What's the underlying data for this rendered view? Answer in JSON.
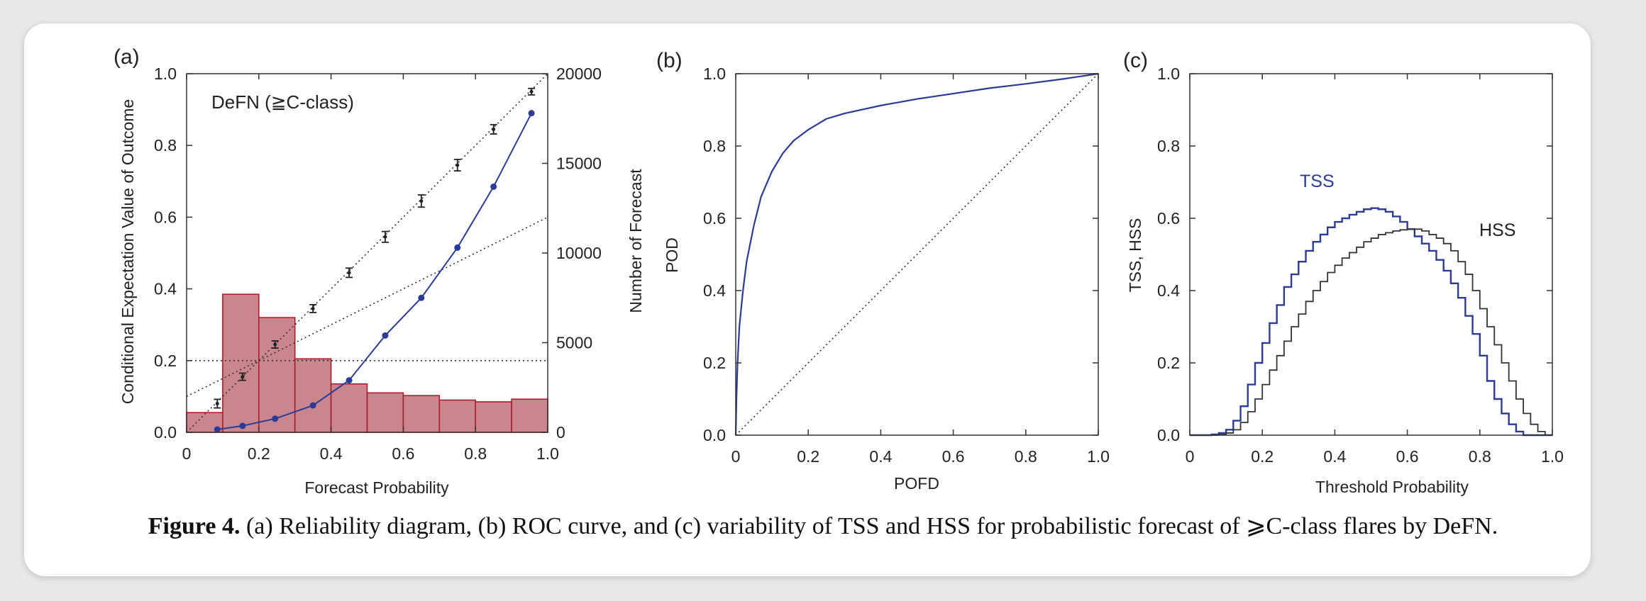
{
  "caption": {
    "label": "Figure 4.",
    "text": "(a) Reliability diagram, (b) ROC curve, and (c) variability of TSS and HSS for probabilistic forecast of ⩾C-class flares by DeFN."
  },
  "colors": {
    "histogram_fill": "#c9868f",
    "histogram_edge": "#b01c2a",
    "curve_blue": "#2b3b96",
    "errorbar_black": "#222222",
    "reference_line": "#333333"
  },
  "chart_data": [
    {
      "panel_label": "(a)",
      "type": "bar",
      "annotation": "DeFN  (≧C-class)",
      "xlabel": "Forecast Probability",
      "ylabel": "Conditional Expectation Value of Outcome",
      "y2label": "Number of Forecast",
      "xlim": [
        0,
        1.0
      ],
      "ylim": [
        0,
        1.0
      ],
      "y2lim": [
        0,
        20000
      ],
      "x_ticks": [
        "0",
        "0.2",
        "0.4",
        "0.6",
        "0.8",
        "1.0"
      ],
      "y_ticks": [
        "0.0",
        "0.2",
        "0.4",
        "0.6",
        "0.8",
        "1.0"
      ],
      "y2_ticks": [
        "0",
        "5000",
        "10000",
        "15000",
        "20000"
      ],
      "histogram": {
        "bin_edges": [
          0,
          0.1,
          0.2,
          0.3,
          0.4,
          0.5,
          0.6,
          0.7,
          0.8,
          0.9,
          1.0
        ],
        "counts": [
          1100,
          7700,
          6400,
          4100,
          2700,
          2200,
          2050,
          1800,
          1700,
          1850
        ]
      },
      "observed": {
        "x": [
          0.085,
          0.155,
          0.245,
          0.35,
          0.45,
          0.55,
          0.65,
          0.75,
          0.85,
          0.955
        ],
        "y": [
          0.08,
          0.155,
          0.245,
          0.345,
          0.445,
          0.545,
          0.645,
          0.745,
          0.845,
          0.95
        ],
        "err": [
          0.012,
          0.01,
          0.01,
          0.011,
          0.013,
          0.015,
          0.017,
          0.016,
          0.013,
          0.009
        ]
      },
      "blue_series": {
        "x": [
          0.085,
          0.155,
          0.245,
          0.35,
          0.45,
          0.55,
          0.65,
          0.75,
          0.85,
          0.955
        ],
        "y": [
          0.008,
          0.018,
          0.038,
          0.075,
          0.145,
          0.27,
          0.375,
          0.515,
          0.685,
          0.89
        ]
      },
      "reference_lines": {
        "perfect": [
          [
            0,
            0
          ],
          [
            1,
            1
          ]
        ],
        "no_skill": [
          [
            0,
            0.1
          ],
          [
            1,
            0.6
          ]
        ],
        "climatology": [
          [
            0,
            0.2
          ],
          [
            1,
            0.2
          ]
        ]
      }
    },
    {
      "panel_label": "(b)",
      "type": "line",
      "xlabel": "POFD",
      "ylabel": "POD",
      "xlim": [
        0,
        1.0
      ],
      "ylim": [
        0,
        1.0
      ],
      "x_ticks": [
        "0",
        "0.2",
        "0.4",
        "0.6",
        "0.8",
        "1.0"
      ],
      "y_ticks": [
        "0.0",
        "0.2",
        "0.4",
        "0.6",
        "0.8",
        "1.0"
      ],
      "roc": {
        "x": [
          0,
          0.002,
          0.005,
          0.01,
          0.02,
          0.03,
          0.05,
          0.07,
          0.1,
          0.13,
          0.16,
          0.2,
          0.25,
          0.3,
          0.4,
          0.5,
          0.6,
          0.7,
          0.8,
          0.9,
          1.0
        ],
        "y": [
          0,
          0.1,
          0.2,
          0.3,
          0.4,
          0.48,
          0.58,
          0.66,
          0.73,
          0.78,
          0.815,
          0.845,
          0.875,
          0.89,
          0.912,
          0.93,
          0.945,
          0.96,
          0.972,
          0.985,
          1.0
        ]
      },
      "diagonal": [
        [
          0,
          0
        ],
        [
          1,
          1
        ]
      ]
    },
    {
      "panel_label": "(c)",
      "type": "line",
      "xlabel": "Threshold Probability",
      "ylabel": "TSS, HSS",
      "xlim": [
        0,
        1.0
      ],
      "ylim": [
        0,
        1.0
      ],
      "x_ticks": [
        "0",
        "0.2",
        "0.4",
        "0.6",
        "0.8",
        "1.0"
      ],
      "y_ticks": [
        "0.0",
        "0.2",
        "0.4",
        "0.6",
        "0.8",
        "1.0"
      ],
      "series": [
        {
          "name": "TSS",
          "step": 0.02,
          "values": [
            0,
            0,
            0,
            0.002,
            0.006,
            0.015,
            0.04,
            0.08,
            0.14,
            0.2,
            0.255,
            0.31,
            0.36,
            0.41,
            0.445,
            0.48,
            0.51,
            0.535,
            0.555,
            0.575,
            0.59,
            0.6,
            0.61,
            0.618,
            0.625,
            0.628,
            0.625,
            0.618,
            0.605,
            0.59,
            0.57,
            0.55,
            0.53,
            0.51,
            0.485,
            0.455,
            0.42,
            0.38,
            0.33,
            0.28,
            0.22,
            0.15,
            0.1,
            0.06,
            0.03,
            0.01,
            0,
            0,
            0,
            0
          ]
        },
        {
          "name": "HSS",
          "step": 0.02,
          "values": [
            0,
            0,
            0,
            0,
            0.002,
            0.006,
            0.015,
            0.035,
            0.065,
            0.1,
            0.14,
            0.18,
            0.22,
            0.26,
            0.3,
            0.335,
            0.37,
            0.4,
            0.425,
            0.45,
            0.47,
            0.49,
            0.505,
            0.52,
            0.535,
            0.545,
            0.555,
            0.56,
            0.565,
            0.568,
            0.57,
            0.57,
            0.565,
            0.555,
            0.545,
            0.53,
            0.51,
            0.48,
            0.445,
            0.4,
            0.35,
            0.3,
            0.25,
            0.2,
            0.15,
            0.1,
            0.06,
            0.03,
            0.01,
            0
          ]
        }
      ]
    }
  ]
}
